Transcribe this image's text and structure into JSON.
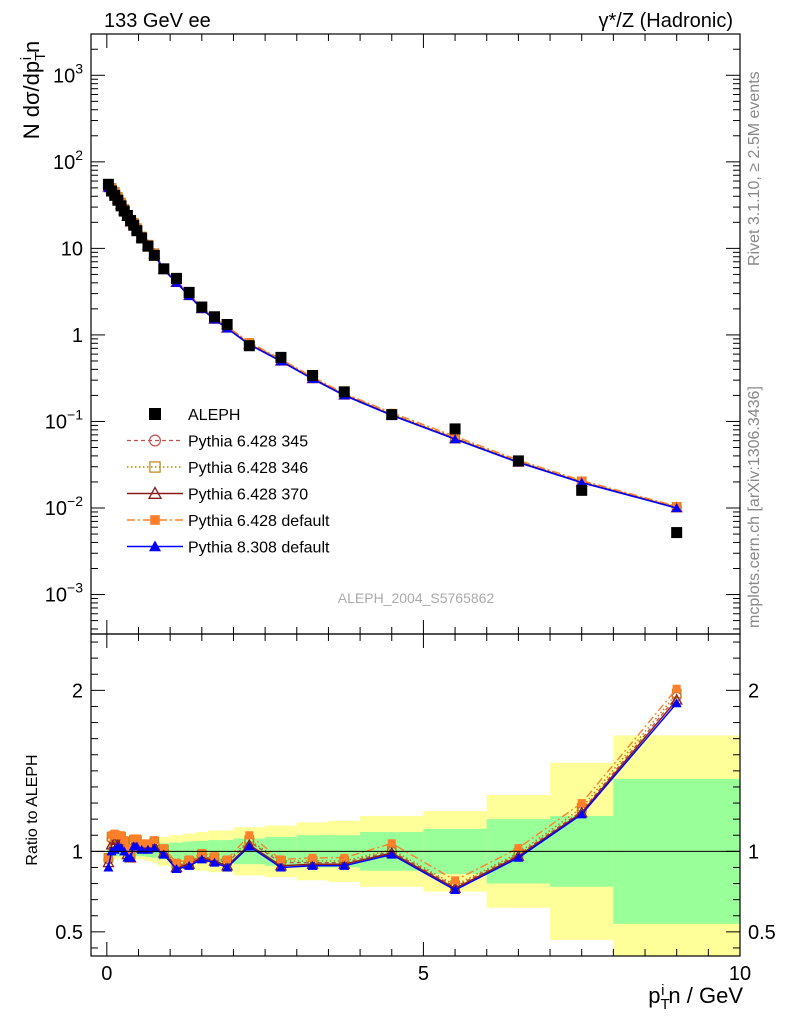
{
  "header": {
    "left": "133 GeV ee",
    "right": "γ*/Z (Hadronic)"
  },
  "side_labels": {
    "rivet": "Rivet 3.1.10, ≥ 2.5M events",
    "mcplots": "mcplots.cern.ch [arXiv:1306.3436]"
  },
  "analysis_id": "ALEPH_2004_S5765862",
  "colors": {
    "data": "#000000",
    "p345": "#c0504d",
    "p346": "#b8860b",
    "p370": "#8b1a1a",
    "p6def": "#ff7f2a",
    "p8def": "#0000ff",
    "band_inner": "#99ff99",
    "band_outer": "#ffff99"
  },
  "chart_data": [
    {
      "type": "scatter",
      "panel": "main",
      "title": "",
      "xlabel": "",
      "ylabel": "N dσ/dp_T^i n",
      "yscale": "log",
      "xlim": [
        -0.25,
        10.0
      ],
      "ylim": [
        0.00035,
        3000
      ],
      "ytick_labels": [
        "10^-3",
        "10^-2",
        "10^-1",
        "1",
        "10",
        "10^2",
        "10^3"
      ],
      "legend_position": "center-left",
      "x": [
        0.025,
        0.075,
        0.125,
        0.175,
        0.225,
        0.275,
        0.325,
        0.375,
        0.425,
        0.475,
        0.55,
        0.65,
        0.75,
        0.9,
        1.1,
        1.3,
        1.5,
        1.7,
        1.9,
        2.25,
        2.75,
        3.25,
        3.75,
        4.5,
        5.5,
        6.5,
        7.5,
        9.0
      ],
      "series": [
        {
          "name": "ALEPH",
          "marker": "square",
          "values": [
            55,
            46,
            41,
            36,
            31,
            27,
            24,
            21,
            18.5,
            16,
            13.2,
            10.6,
            8.3,
            5.8,
            4.5,
            3.1,
            2.1,
            1.62,
            1.32,
            0.75,
            0.55,
            0.34,
            0.22,
            0.12,
            0.082,
            0.035,
            0.016,
            0.0052
          ]
        },
        {
          "name": "Pythia 6.428 345",
          "marker": "circle",
          "ratio": [
            0.95,
            1.08,
            1.09,
            1.08,
            1.08,
            1.05,
            1.0,
            0.97,
            1.06,
            1.06,
            1.03,
            1.03,
            1.05,
            1.0,
            0.91,
            0.93,
            0.97,
            0.95,
            0.93,
            1.06,
            0.93,
            0.93,
            0.93,
            1.0,
            0.78,
            0.98,
            1.25,
            1.96
          ]
        },
        {
          "name": "Pythia 6.428 346",
          "marker": "open-square",
          "ratio": [
            0.96,
            1.09,
            1.1,
            1.09,
            1.09,
            1.06,
            1.01,
            0.98,
            1.07,
            1.07,
            1.04,
            1.04,
            1.06,
            1.01,
            0.92,
            0.94,
            0.98,
            0.96,
            0.94,
            1.07,
            0.94,
            0.94,
            0.94,
            1.01,
            0.79,
            0.99,
            1.27,
            1.98
          ]
        },
        {
          "name": "Pythia 6.428 370",
          "marker": "open-triangle",
          "ratio": [
            0.93,
            1.04,
            1.05,
            1.04,
            1.05,
            1.03,
            0.98,
            0.96,
            1.04,
            1.04,
            1.02,
            1.02,
            1.03,
            0.99,
            0.9,
            0.92,
            0.96,
            0.94,
            0.91,
            1.04,
            0.91,
            0.92,
            0.92,
            0.99,
            0.77,
            0.97,
            1.24,
            1.94
          ]
        },
        {
          "name": "Pythia 6.428 default",
          "marker": "filled-square",
          "ratio": [
            0.96,
            1.1,
            1.11,
            1.1,
            1.1,
            1.07,
            1.02,
            0.99,
            1.08,
            1.08,
            1.05,
            1.05,
            1.07,
            1.02,
            0.93,
            0.95,
            0.99,
            0.97,
            0.95,
            1.1,
            0.95,
            0.96,
            0.96,
            1.05,
            0.82,
            1.02,
            1.3,
            2.01
          ]
        },
        {
          "name": "Pythia 8.308 default",
          "marker": "filled-triangle",
          "ratio": [
            0.9,
            1.0,
            1.01,
            1.03,
            1.02,
            1.0,
            0.96,
            0.96,
            1.03,
            1.03,
            1.01,
            1.01,
            1.02,
            0.98,
            0.89,
            0.91,
            0.95,
            0.93,
            0.9,
            1.03,
            0.9,
            0.91,
            0.91,
            0.98,
            0.76,
            0.96,
            1.23,
            1.92
          ]
        }
      ]
    },
    {
      "type": "scatter",
      "panel": "ratio",
      "ylabel": "Ratio to ALEPH",
      "xlabel": "p_T^i n / GeV",
      "xlim": [
        -0.25,
        10.0
      ],
      "ylim": [
        0.35,
        2.35
      ],
      "ytick_labels": [
        "0.5",
        "1",
        "2"
      ],
      "xtick_labels": [
        "0",
        "5",
        "10"
      ],
      "bins": [
        [
          0,
          0.05
        ],
        [
          0.05,
          0.1
        ],
        [
          0.1,
          0.15
        ],
        [
          0.15,
          0.2
        ],
        [
          0.2,
          0.25
        ],
        [
          0.25,
          0.3
        ],
        [
          0.3,
          0.35
        ],
        [
          0.35,
          0.4
        ],
        [
          0.4,
          0.45
        ],
        [
          0.45,
          0.5
        ],
        [
          0.5,
          0.6
        ],
        [
          0.6,
          0.7
        ],
        [
          0.7,
          0.8
        ],
        [
          0.8,
          1.0
        ],
        [
          1.0,
          1.2
        ],
        [
          1.2,
          1.4
        ],
        [
          1.4,
          1.6
        ],
        [
          1.6,
          1.8
        ],
        [
          1.8,
          2.0
        ],
        [
          2.0,
          2.5
        ],
        [
          2.5,
          3.0
        ],
        [
          3.0,
          3.5
        ],
        [
          3.5,
          4.0
        ],
        [
          4.0,
          5.0
        ],
        [
          5.0,
          6.0
        ],
        [
          6.0,
          7.0
        ],
        [
          7.0,
          8.0
        ],
        [
          8.0,
          10.0
        ]
      ],
      "band_inner_halfwidth": [
        0.03,
        0.03,
        0.03,
        0.03,
        0.03,
        0.03,
        0.03,
        0.03,
        0.03,
        0.03,
        0.03,
        0.035,
        0.04,
        0.05,
        0.055,
        0.06,
        0.065,
        0.07,
        0.07,
        0.08,
        0.09,
        0.1,
        0.1,
        0.12,
        0.14,
        0.2,
        0.22,
        0.45
      ],
      "band_outer_halfwidth": [
        0.05,
        0.05,
        0.05,
        0.05,
        0.05,
        0.05,
        0.05,
        0.05,
        0.05,
        0.05,
        0.05,
        0.06,
        0.07,
        0.09,
        0.1,
        0.11,
        0.12,
        0.13,
        0.13,
        0.15,
        0.16,
        0.18,
        0.19,
        0.22,
        0.25,
        0.35,
        0.55,
        0.72
      ]
    }
  ]
}
